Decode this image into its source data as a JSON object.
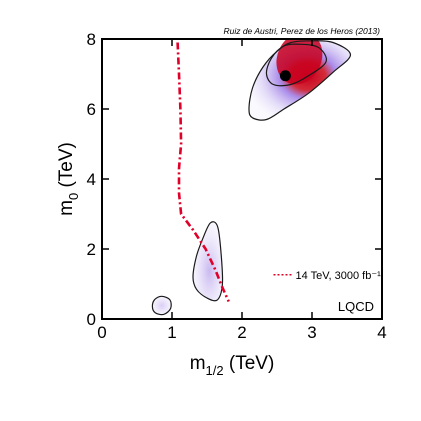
{
  "chart_data": {
    "type": "contour",
    "credit": "Ruiz de Austri, Perez de los Heros (2013)",
    "xlabel": {
      "main": "m",
      "sub": "1/2",
      "unit": " (TeV)"
    },
    "ylabel": {
      "main": "m",
      "sub": "0",
      "unit": " (TeV)"
    },
    "xlim": [
      0,
      4
    ],
    "ylim": [
      0,
      8
    ],
    "xticks": [
      0,
      1,
      2,
      3,
      4
    ],
    "xtick_labels": [
      "0",
      "1",
      "2",
      "3",
      "4"
    ],
    "yticks": [
      0,
      2,
      4,
      6,
      8
    ],
    "ytick_labels": [
      "0",
      "2",
      "4",
      "6",
      "8"
    ],
    "grid": false,
    "legend_position": "bottom-right",
    "model_label": "LQCD",
    "colors": {
      "axes": "#000000",
      "contour": "#1a1a1a",
      "posterior_core": "#c8001e",
      "posterior_mid": "#9b78e6",
      "posterior_halo": "#ece6fa",
      "reach_line": "#e0002a",
      "best_fit": "#000000"
    },
    "best_fit_point": {
      "x": 2.62,
      "y": 6.95
    },
    "regions": [
      {
        "name": "high-m0 region",
        "outer": [
          [
            2.1,
            6.0
          ],
          [
            2.15,
            6.6
          ],
          [
            2.3,
            7.2
          ],
          [
            2.5,
            7.65
          ],
          [
            2.7,
            7.9
          ],
          [
            3.0,
            7.95
          ],
          [
            3.3,
            7.9
          ],
          [
            3.55,
            7.55
          ],
          [
            3.3,
            7.05
          ],
          [
            2.95,
            6.45
          ],
          [
            2.6,
            6.0
          ],
          [
            2.35,
            5.7
          ],
          [
            2.15,
            5.75
          ]
        ],
        "inner": [
          [
            2.35,
            7.0
          ],
          [
            2.42,
            7.45
          ],
          [
            2.6,
            7.8
          ],
          [
            2.85,
            7.85
          ],
          [
            3.1,
            7.75
          ],
          [
            3.2,
            7.35
          ],
          [
            2.95,
            6.95
          ],
          [
            2.7,
            6.7
          ],
          [
            2.45,
            6.7
          ]
        ],
        "core": {
          "x": 2.82,
          "y": 7.45
        }
      },
      {
        "name": "low-m0 region",
        "outer": [
          [
            1.3,
            1.2
          ],
          [
            1.35,
            1.8
          ],
          [
            1.45,
            2.35
          ],
          [
            1.55,
            2.75
          ],
          [
            1.65,
            2.65
          ],
          [
            1.7,
            1.9
          ],
          [
            1.72,
            1.0
          ],
          [
            1.65,
            0.55
          ],
          [
            1.5,
            0.6
          ],
          [
            1.35,
            0.85
          ]
        ],
        "core": {
          "x": 1.56,
          "y": 1.5
        }
      },
      {
        "name": "small island",
        "outer": [
          [
            0.72,
            0.35
          ],
          [
            0.75,
            0.55
          ],
          [
            0.85,
            0.65
          ],
          [
            0.97,
            0.55
          ],
          [
            0.98,
            0.3
          ],
          [
            0.88,
            0.13
          ],
          [
            0.76,
            0.18
          ]
        ],
        "core": {
          "x": 0.85,
          "y": 0.38
        }
      }
    ],
    "series": [
      {
        "name": "14 TeV, 3000 fb⁻¹",
        "style": "dash-dot",
        "x": [
          1.08,
          1.1,
          1.12,
          1.13,
          1.1,
          1.1,
          1.13,
          1.3,
          1.48,
          1.62,
          1.72,
          1.81
        ],
        "y": [
          7.9,
          7.0,
          6.0,
          5.0,
          4.3,
          3.6,
          3.0,
          2.55,
          2.0,
          1.4,
          0.9,
          0.5
        ]
      }
    ]
  }
}
